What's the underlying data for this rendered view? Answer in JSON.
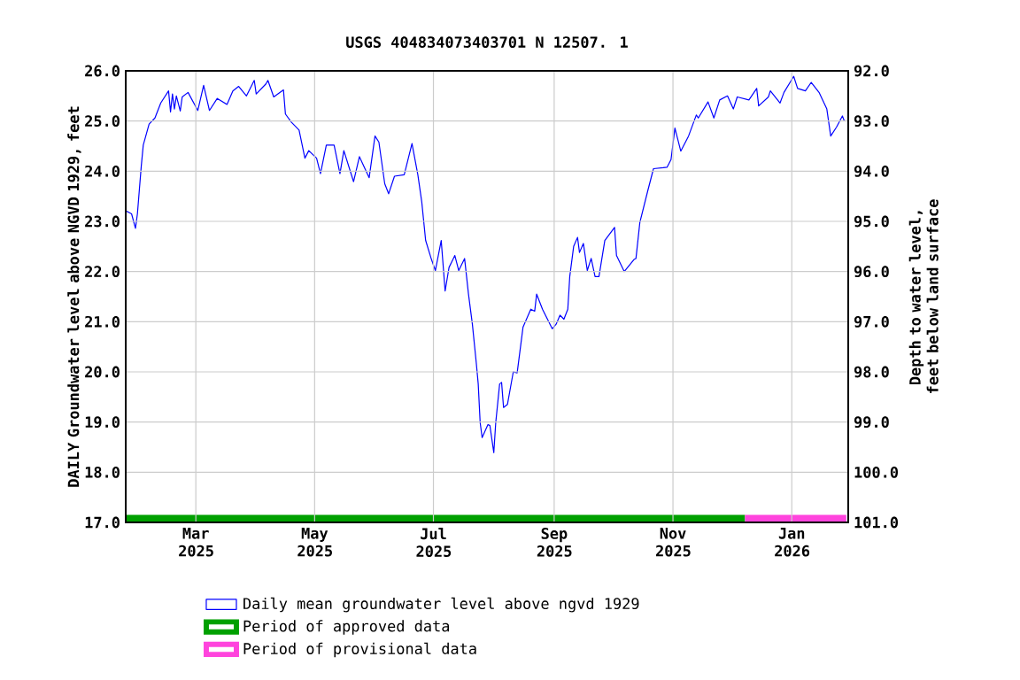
{
  "chart_data": {
    "type": "line",
    "title": "USGS 404834073403701 N 12507. 1",
    "ylabel": "DAILY Groundwater level above NGVD 1929, feet",
    "y2label": "Depth to water level, feet below land surface",
    "xlim": [
      "2025-01-24",
      "2026-01-30"
    ],
    "xticks": [
      {
        "value": "2025-03-01",
        "label": "Mar 2025"
      },
      {
        "value": "2025-05-01",
        "label": "May 2025"
      },
      {
        "value": "2025-07-01",
        "label": "Jul 2025"
      },
      {
        "value": "2025-09-01",
        "label": "Sep 2025"
      },
      {
        "value": "2025-11-01",
        "label": "Nov 2025"
      },
      {
        "value": "2026-01-01",
        "label": "Jan 2026"
      }
    ],
    "ylim": [
      17,
      26
    ],
    "yticks": [
      {
        "value": 17,
        "label": "17.0"
      },
      {
        "value": 18,
        "label": "18.0"
      },
      {
        "value": 19,
        "label": "19.0"
      },
      {
        "value": 20,
        "label": "20.0"
      },
      {
        "value": 21,
        "label": "21.0"
      },
      {
        "value": 22,
        "label": "22.0"
      },
      {
        "value": 23,
        "label": "23.0"
      },
      {
        "value": 24,
        "label": "24.0"
      },
      {
        "value": 25,
        "label": "25.0"
      },
      {
        "value": 26,
        "label": "26.0"
      }
    ],
    "y2lim": [
      101,
      92
    ],
    "y2ticks": [
      {
        "value": 92,
        "label": "92.0"
      },
      {
        "value": 93,
        "label": "93.0"
      },
      {
        "value": 94,
        "label": "94.0"
      },
      {
        "value": 95,
        "label": "95.0"
      },
      {
        "value": 96,
        "label": "96.0"
      },
      {
        "value": 97,
        "label": "97.0"
      },
      {
        "value": 98,
        "label": "98.0"
      },
      {
        "value": 99,
        "label": "99.0"
      },
      {
        "value": 100,
        "label": "100.0"
      },
      {
        "value": 101,
        "label": "101.0"
      }
    ],
    "grid": true,
    "legend": "bottom",
    "series": [
      {
        "type": "area",
        "name": "Period of approved data",
        "color": "#00a000",
        "x": [
          "2025-01-24",
          "2025-12-08"
        ],
        "values": [
          17.15,
          17.15
        ]
      },
      {
        "type": "area",
        "name": "Period of provisional data",
        "color": "#ff44dd",
        "x": [
          "2025-12-08",
          "2026-01-29"
        ],
        "values": [
          17.15,
          17.15
        ]
      },
      {
        "name": "Daily mean groundwater level above ngvd 1929",
        "color": "#0000ff",
        "x": [
          "2025-01-24",
          "2025-01-27",
          "2025-01-29",
          "2025-01-30",
          "2025-01-31",
          "2025-02-01",
          "2025-02-02",
          "2025-02-05",
          "2025-02-08",
          "2025-02-11",
          "2025-02-15",
          "2025-02-16",
          "2025-02-17",
          "2025-02-18",
          "2025-02-19",
          "2025-02-21",
          "2025-02-22",
          "2025-02-25",
          "2025-03-02",
          "2025-03-05",
          "2025-03-08",
          "2025-03-12",
          "2025-03-17",
          "2025-03-20",
          "2025-03-23",
          "2025-03-27",
          "2025-03-31",
          "2025-04-01",
          "2025-04-06",
          "2025-04-07",
          "2025-04-10",
          "2025-04-15",
          "2025-04-16",
          "2025-04-19",
          "2025-04-23",
          "2025-04-26",
          "2025-04-28",
          "2025-05-02",
          "2025-05-04",
          "2025-05-07",
          "2025-05-11",
          "2025-05-14",
          "2025-05-16",
          "2025-05-21",
          "2025-05-24",
          "2025-05-29",
          "2025-06-01",
          "2025-06-03",
          "2025-06-06",
          "2025-06-08",
          "2025-06-11",
          "2025-06-16",
          "2025-06-20",
          "2025-06-23",
          "2025-06-25",
          "2025-06-27",
          "2025-06-30",
          "2025-07-02",
          "2025-07-05",
          "2025-07-07",
          "2025-07-09",
          "2025-07-12",
          "2025-07-14",
          "2025-07-17",
          "2025-07-19",
          "2025-07-21",
          "2025-07-23",
          "2025-07-24",
          "2025-07-25",
          "2025-07-26",
          "2025-07-29",
          "2025-07-30",
          "2025-08-01",
          "2025-08-02",
          "2025-08-04",
          "2025-08-05",
          "2025-08-06",
          "2025-08-08",
          "2025-08-11",
          "2025-08-13",
          "2025-08-16",
          "2025-08-20",
          "2025-08-22",
          "2025-08-23",
          "2025-08-26",
          "2025-08-31",
          "2025-09-02",
          "2025-09-04",
          "2025-09-06",
          "2025-09-08",
          "2025-09-09",
          "2025-09-11",
          "2025-09-13",
          "2025-09-14",
          "2025-09-16",
          "2025-09-18",
          "2025-09-20",
          "2025-09-22",
          "2025-09-24",
          "2025-09-27",
          "2025-10-02",
          "2025-10-03",
          "2025-10-07",
          "2025-10-12",
          "2025-10-13",
          "2025-10-15",
          "2025-10-19",
          "2025-10-22",
          "2025-10-27",
          "2025-10-29",
          "2025-10-31",
          "2025-11-02",
          "2025-11-05",
          "2025-11-09",
          "2025-11-13",
          "2025-11-14",
          "2025-11-19",
          "2025-11-22",
          "2025-11-25",
          "2025-11-29",
          "2025-12-02",
          "2025-12-04",
          "2025-12-10",
          "2025-12-14",
          "2025-12-15",
          "2025-12-20",
          "2025-12-21",
          "2025-12-26",
          "2025-12-28",
          "2026-01-02",
          "2026-01-04",
          "2026-01-08",
          "2026-01-11",
          "2026-01-15",
          "2026-01-19",
          "2026-01-21",
          "2026-01-24",
          "2026-01-27",
          "2026-01-28"
        ],
        "values": [
          23.21,
          23.15,
          22.86,
          23.15,
          23.63,
          24.11,
          24.52,
          24.94,
          25.06,
          25.36,
          25.6,
          25.18,
          25.54,
          25.24,
          25.5,
          25.2,
          25.48,
          25.57,
          25.21,
          25.71,
          25.21,
          25.45,
          25.33,
          25.6,
          25.69,
          25.5,
          25.81,
          25.54,
          25.74,
          25.81,
          25.48,
          25.62,
          25.14,
          24.98,
          24.82,
          24.26,
          24.41,
          24.26,
          23.95,
          24.52,
          24.52,
          23.95,
          24.41,
          23.79,
          24.29,
          23.87,
          24.7,
          24.58,
          23.75,
          23.55,
          23.9,
          23.93,
          24.55,
          23.93,
          23.39,
          22.62,
          22.24,
          22.02,
          22.62,
          21.61,
          22.08,
          22.32,
          22.02,
          22.26,
          21.55,
          20.95,
          20.18,
          19.76,
          18.99,
          18.69,
          18.95,
          18.93,
          18.39,
          18.99,
          19.76,
          19.79,
          19.29,
          19.35,
          20.0,
          19.98,
          20.89,
          21.25,
          21.21,
          21.55,
          21.25,
          20.86,
          20.95,
          21.13,
          21.05,
          21.25,
          21.9,
          22.5,
          22.68,
          22.38,
          22.56,
          22.02,
          22.26,
          21.9,
          21.9,
          22.62,
          22.88,
          22.32,
          22.0,
          22.24,
          22.26,
          22.98,
          23.6,
          24.05,
          24.07,
          24.08,
          24.23,
          24.86,
          24.4,
          24.7,
          25.12,
          25.06,
          25.38,
          25.06,
          25.42,
          25.5,
          25.24,
          25.48,
          25.42,
          25.65,
          25.3,
          25.48,
          25.6,
          25.36,
          25.57,
          25.89,
          25.65,
          25.6,
          25.77,
          25.57,
          25.24,
          24.7,
          24.88,
          25.1,
          25.0
        ]
      }
    ]
  }
}
